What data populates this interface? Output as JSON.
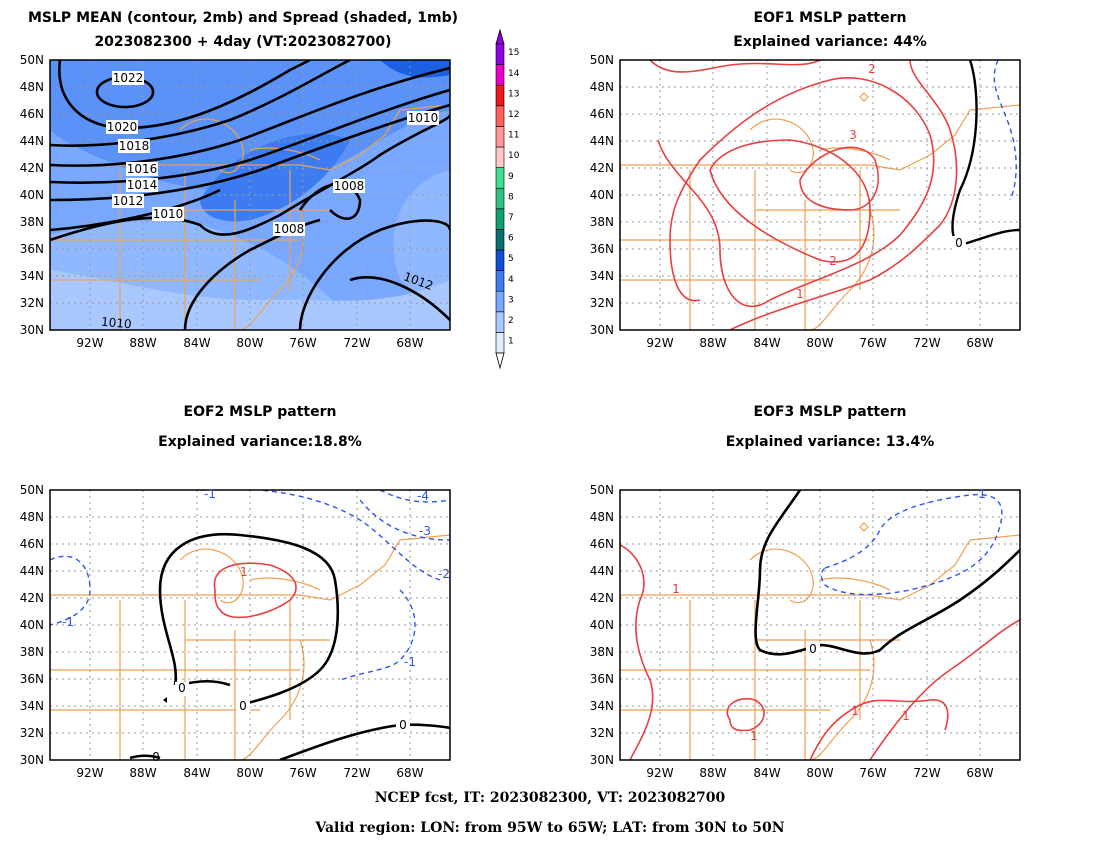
{
  "figure": {
    "panel1": {
      "title1": "MSLP MEAN (contour, 2mb) and Spread (shaded, 1mb)",
      "title2": "2023082300 + 4day (VT:2023082700)",
      "contour_labels": [
        "1022",
        "1020",
        "1018",
        "1016",
        "1014",
        "1012",
        "1010",
        "1008",
        "1008",
        "1010",
        "1012",
        "1010"
      ]
    },
    "panel2": {
      "title1": "EOF1 MSLP pattern",
      "title2": "Explained variance: 44%",
      "contour_labels": [
        "2",
        "3",
        "2",
        "1",
        "0"
      ]
    },
    "panel3": {
      "title1": "EOF2 MSLP pattern",
      "title2": "Explained variance:18.8%",
      "contour_labels": [
        "-1",
        "-4",
        "-3",
        "-2",
        "-1",
        "-1",
        "1",
        "0",
        "0",
        "0",
        "0"
      ]
    },
    "panel4": {
      "title1": "EOF3 MSLP pattern",
      "title2": "Explained variance: 13.4%",
      "contour_labels": [
        "-1",
        "1",
        "0",
        "1",
        "1",
        "1"
      ]
    },
    "axes": {
      "lat_ticks": [
        "50N",
        "48N",
        "46N",
        "44N",
        "42N",
        "40N",
        "38N",
        "36N",
        "34N",
        "32N",
        "30N"
      ],
      "lon_ticks": [
        "92W",
        "88W",
        "84W",
        "80W",
        "76W",
        "72W",
        "68W"
      ]
    },
    "colorbar": {
      "labels": [
        "1",
        "2",
        "3",
        "4",
        "5",
        "6",
        "7",
        "8",
        "9",
        "10",
        "11",
        "12",
        "13",
        "14",
        "15"
      ],
      "colors": [
        "#e0ecff",
        "#a8c8ff",
        "#78a8ff",
        "#3c7cf0",
        "#1050d8",
        "#087070",
        "#10a070",
        "#30c080",
        "#40e090",
        "#ffc8c8",
        "#ff9898",
        "#ff6060",
        "#f01818",
        "#e800c8",
        "#9000e8"
      ]
    },
    "footer": {
      "line1": "NCEP fcst, IT: 2023082300, VT: 2023082700",
      "line2": "Valid region: LON: from 95W to 65W; LAT: from 30N to 50N"
    }
  }
}
